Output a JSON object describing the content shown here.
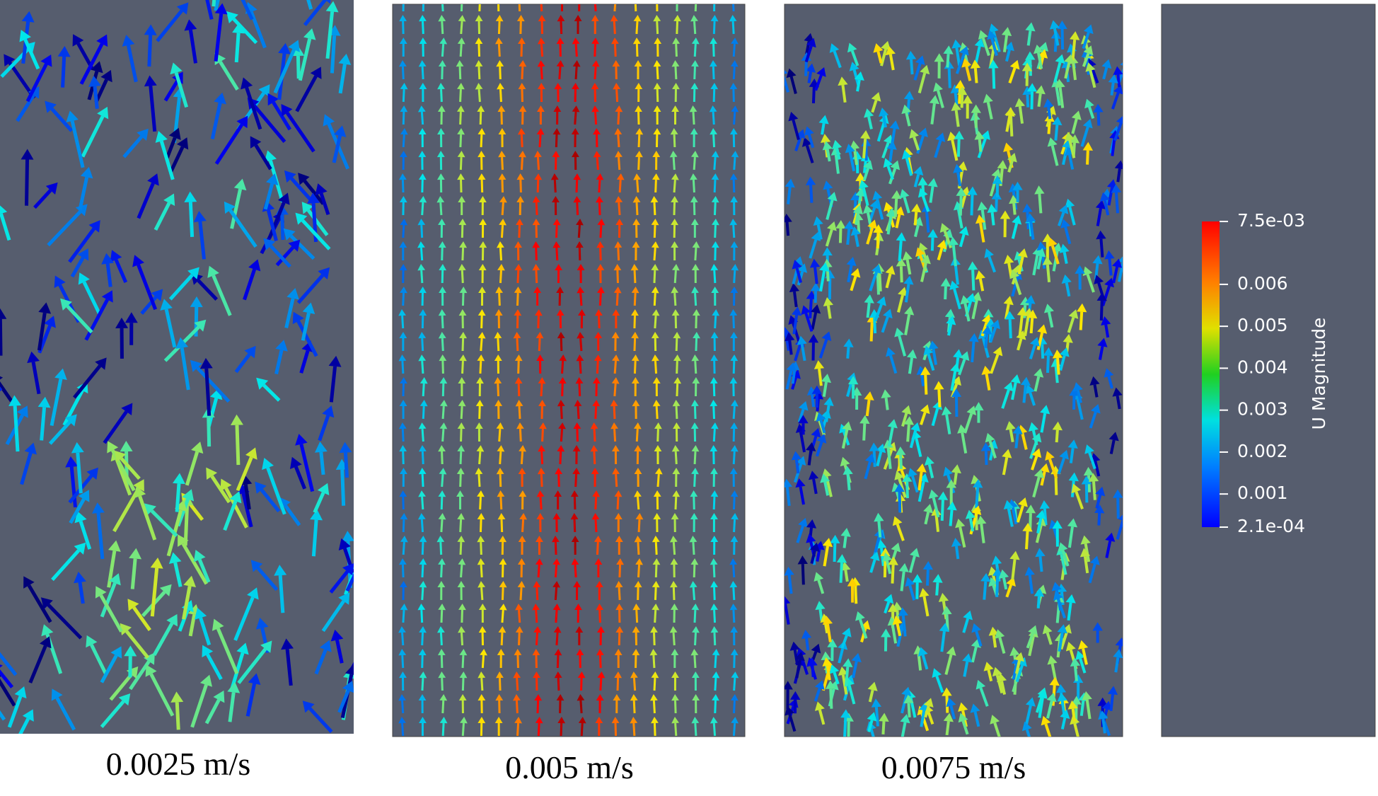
{
  "panels": [
    {
      "caption": "0.0025 m/s"
    },
    {
      "caption": "0.005 m/s"
    },
    {
      "caption": "0.0075 m/s"
    }
  ],
  "colorbar": {
    "title": "U Magnitude",
    "range": [
      0.00021,
      0.0075
    ],
    "ticks": [
      {
        "value": 0.0075,
        "label": "7.5e-03"
      },
      0.006,
      0.005,
      0.004,
      0.003,
      0.002,
      0.001,
      {
        "value": 0.00021,
        "label": "2.1e-04"
      }
    ]
  }
}
